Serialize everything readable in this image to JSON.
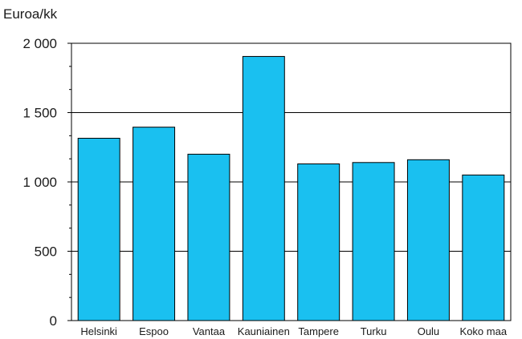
{
  "chart_data": {
    "type": "bar",
    "title": "",
    "xlabel": "",
    "ylabel": "Euroa/kk",
    "categories": [
      "Helsinki",
      "Espoo",
      "Vantaa",
      "Kauniainen",
      "Tampere",
      "Turku",
      "Oulu",
      "Koko maa"
    ],
    "values": [
      1315,
      1395,
      1200,
      1905,
      1130,
      1140,
      1160,
      1050
    ],
    "ylim": [
      0,
      2000
    ],
    "yticks": [
      0,
      500,
      1000,
      1500,
      2000
    ],
    "ytick_labels": [
      "0",
      "500",
      "1 000",
      "1 500",
      "2 000"
    ],
    "minor_ticks_per_interval": 2,
    "grid": true,
    "legend": "none",
    "colors": {
      "bar": "#1ac0f0",
      "bar_edge": "#000000",
      "grid": "#000000",
      "axis": "#000000"
    }
  }
}
